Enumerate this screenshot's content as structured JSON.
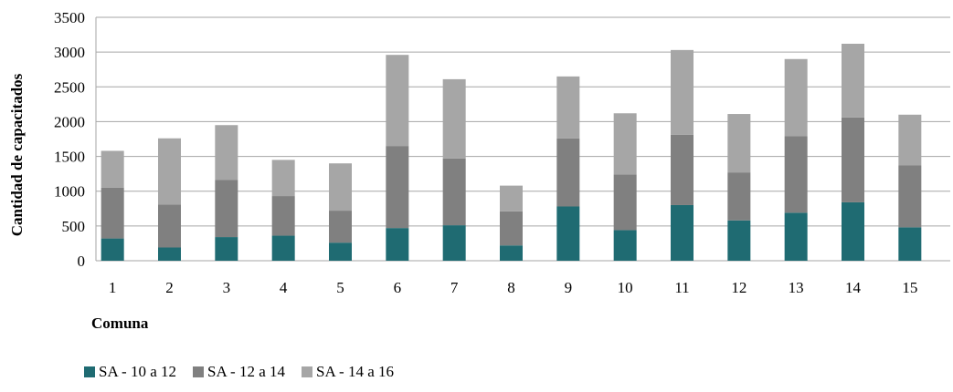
{
  "chart_data": {
    "type": "bar",
    "stacked": true,
    "xlabel": "Comuna",
    "ylabel": "Cantidad de capacitados",
    "ylim": [
      0,
      3500
    ],
    "yticks": [
      0,
      500,
      1000,
      1500,
      2000,
      2500,
      3000,
      3500
    ],
    "categories": [
      "1",
      "2",
      "3",
      "4",
      "5",
      "6",
      "7",
      "8",
      "9",
      "10",
      "11",
      "12",
      "13",
      "14",
      "15"
    ],
    "series": [
      {
        "name": "SA - 10 a 12",
        "color": "#1f6b72",
        "values": [
          320,
          190,
          340,
          360,
          260,
          470,
          510,
          220,
          780,
          440,
          800,
          580,
          690,
          840,
          480
        ]
      },
      {
        "name": "SA - 12 a 14",
        "color": "#808080",
        "values": [
          730,
          620,
          820,
          570,
          460,
          1180,
          960,
          490,
          980,
          800,
          1010,
          690,
          1100,
          1220,
          890
        ]
      },
      {
        "name": "SA - 14 a 16",
        "color": "#a6a6a6",
        "values": [
          530,
          950,
          790,
          520,
          680,
          1310,
          1140,
          370,
          890,
          880,
          1220,
          840,
          1110,
          1060,
          730
        ]
      }
    ],
    "grid": true,
    "legend_position": "bottom-left"
  }
}
